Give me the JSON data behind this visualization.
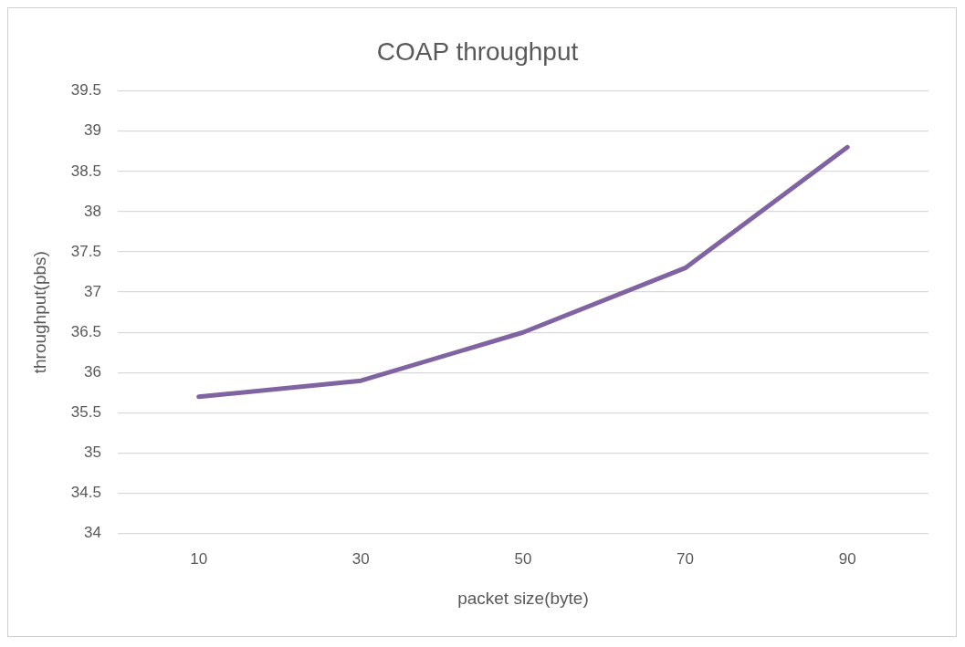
{
  "chart_data": {
    "type": "line",
    "title": "COAP throughput",
    "xlabel": "packet size(byte)",
    "ylabel": "throughput(pbs)",
    "categories": [
      "10",
      "30",
      "50",
      "70",
      "90"
    ],
    "series": [
      {
        "color": "#8064a2",
        "values": [
          35.7,
          35.9,
          36.5,
          37.3,
          38.8
        ]
      }
    ],
    "ylim": [
      34,
      39.5
    ],
    "yticks": [
      34,
      34.5,
      35,
      35.5,
      36,
      36.5,
      37,
      37.5,
      38,
      38.5,
      39,
      39.5
    ],
    "grid": "y",
    "legend": false,
    "marker": "none",
    "line_style": "solid"
  }
}
